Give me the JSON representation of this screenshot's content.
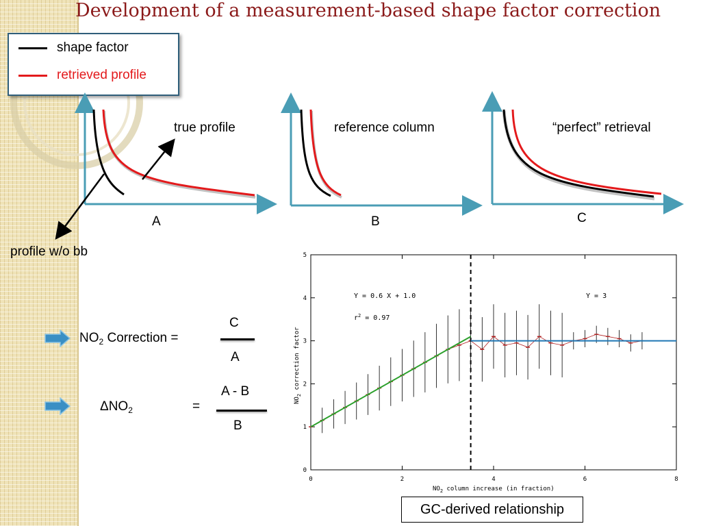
{
  "slide": {
    "title": "Development of a measurement-based shape factor correction"
  },
  "legend": {
    "items": [
      {
        "label": "shape factor",
        "color": "#000000"
      },
      {
        "label": "retrieved profile",
        "color": "#e31a1c"
      }
    ]
  },
  "panels": {
    "a": {
      "annotation": "true profile",
      "letter": "A",
      "pointer_label": "profile w/o bb"
    },
    "b": {
      "annotation": "reference column",
      "letter": "B"
    },
    "c": {
      "annotation": "“perfect” retrieval",
      "letter": "C"
    }
  },
  "equations": {
    "correction": {
      "lhs_prefix": "NO",
      "lhs_sub": "2",
      "lhs_suffix": " Correction =",
      "numerator": "C",
      "denominator": "A"
    },
    "delta": {
      "lhs_prefix": "ΔNO",
      "lhs_sub": "2",
      "equals": "=",
      "numerator": "A - B",
      "denominator": "B"
    }
  },
  "plot_text": {
    "eq_left": "Y = 0.6 X + 1.0",
    "r2_prefix": "r",
    "r2_sup": "2",
    "r2_suffix": " = 0.97",
    "eq_right": "Y = 3",
    "xlabel_prefix": "NO",
    "xlabel_sub": "2",
    "xlabel_suffix": " column increase (in fraction)",
    "ylabel_prefix": "NO",
    "ylabel_sub": "2",
    "ylabel_suffix": " correction factor"
  },
  "caption": "GC-derived relationship",
  "colors": {
    "title": "#8b1a1a",
    "axis_teal": "#4a9db5",
    "fit_green": "#2ca02c",
    "fit_blue": "#1f77b4",
    "arrow_blue": "#3a8fc4"
  },
  "chart_data": {
    "type": "scatter",
    "xlabel": "NO2 column increase (in fraction)",
    "ylabel": "NO2 correction factor",
    "xlim": [
      0,
      8
    ],
    "ylim": [
      0,
      5
    ],
    "xticks": [
      0,
      2,
      4,
      6,
      8
    ],
    "yticks": [
      0,
      1,
      2,
      3,
      4,
      5
    ],
    "divider_x": 3.5,
    "series": [
      {
        "name": "",
        "x": [
          0.0,
          0.25,
          0.5,
          0.75,
          1.0,
          1.25,
          1.5,
          1.75,
          2.0,
          2.25,
          2.5,
          2.75,
          3.0,
          3.25,
          3.5,
          3.75,
          4.0,
          4.25,
          4.5,
          4.75,
          5.0,
          5.25,
          5.5,
          5.75,
          6.0,
          6.25,
          6.5,
          6.75,
          7.0,
          7.25
        ],
        "y": [
          1.0,
          1.15,
          1.3,
          1.45,
          1.6,
          1.75,
          1.9,
          2.05,
          2.2,
          2.35,
          2.5,
          2.65,
          2.8,
          2.9,
          3.0,
          2.8,
          3.1,
          2.9,
          2.95,
          2.85,
          3.1,
          2.95,
          2.9,
          3.0,
          3.05,
          3.15,
          3.1,
          3.05,
          2.95,
          3.0
        ]
      }
    ],
    "fits": [
      {
        "label": "Y = 0.6 X + 1.0",
        "x_range": [
          0,
          3.5
        ],
        "slope": 0.6,
        "intercept": 1.0,
        "r2": 0.97
      },
      {
        "label": "Y = 3",
        "x_range": [
          3.5,
          8
        ],
        "slope": 0,
        "intercept": 3
      }
    ]
  }
}
